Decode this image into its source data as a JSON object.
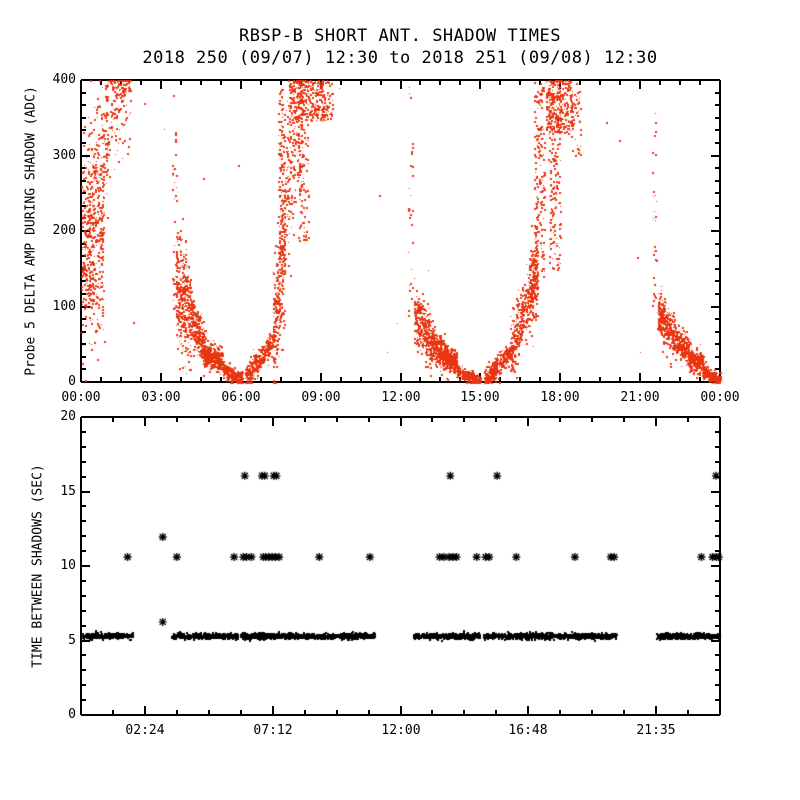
{
  "title": "RBSP-B SHORT ANT. SHADOW TIMES",
  "subtitle": "2018 250 (09/07) 12:30 to 2018 251 (09/08) 12:30",
  "colors": {
    "background": "#ffffff",
    "axis": "#000000",
    "red_series": "#ea3511",
    "black_series": "#000000"
  },
  "chart_data": [
    {
      "type": "scatter",
      "panel": "top",
      "series_name": "probe5-delta-amp",
      "ylabel": "Probe 5 DELTA AMP DURING SHADOW (ADC)",
      "xlabel": "",
      "xlim": [
        0,
        24
      ],
      "ylim": [
        0,
        400
      ],
      "x_tick_hours": [
        0,
        3,
        6,
        9,
        12,
        15,
        18,
        21,
        24
      ],
      "x_tick_labels": [
        "00:00",
        "03:00",
        "06:00",
        "09:00",
        "12:00",
        "15:00",
        "18:00",
        "21:00",
        "00:00"
      ],
      "x_minor_step": 0.75,
      "y_tick_values": [
        0,
        100,
        200,
        300,
        400
      ],
      "y_tick_labels": [
        "0",
        "100",
        "200",
        "300",
        "400"
      ],
      "y_minor_step": 16.667,
      "marker": "dot",
      "color": "#ea3511",
      "grid": false,
      "series_description": "Red dot scatter of probe 5 delta amplitude (ADC) during short antenna shadows. U-shaped shadow events with minima near 06:00, 15:00 and 24:00; saturated clusters at 400 ADC near 00:00-02:00, 08:00-09:15 and 17:30-18:30; sparse vertical entry streaks near 03:30, 12:20 and 21:30.",
      "bands": [
        [
          0.0,
          0.85,
          185,
          185,
          70,
          380
        ],
        [
          0.25,
          1.0,
          250,
          345,
          45,
          150
        ],
        [
          0.9,
          1.85,
          330,
          405,
          40,
          150
        ],
        [
          3.55,
          4.1,
          130,
          90,
          38,
          340
        ],
        [
          4.1,
          4.65,
          90,
          42,
          15,
          260
        ],
        [
          4.6,
          5.3,
          36,
          30,
          8,
          300
        ],
        [
          5.3,
          6.05,
          18,
          2,
          5,
          280
        ],
        [
          6.15,
          7.2,
          6,
          55,
          8,
          300
        ],
        [
          7.2,
          7.65,
          60,
          185,
          45,
          280
        ],
        [
          7.6,
          8.3,
          240,
          370,
          55,
          220
        ],
        [
          12.5,
          13.2,
          95,
          50,
          18,
          340
        ],
        [
          13.2,
          13.75,
          50,
          32,
          10,
          260
        ],
        [
          13.6,
          14.1,
          32,
          28,
          7,
          260
        ],
        [
          14.1,
          15.0,
          15,
          1,
          4,
          260
        ],
        [
          15.12,
          16.1,
          2,
          40,
          7,
          300
        ],
        [
          16.1,
          16.8,
          40,
          110,
          20,
          260
        ],
        [
          16.8,
          17.15,
          110,
          150,
          30,
          220
        ],
        [
          21.65,
          22.3,
          92,
          58,
          14,
          300
        ],
        [
          22.3,
          22.9,
          58,
          35,
          10,
          240
        ],
        [
          22.85,
          23.35,
          30,
          26,
          7,
          220
        ],
        [
          23.35,
          24.0,
          14,
          4,
          4,
          220
        ]
      ],
      "blocks": [
        [
          0.0,
          0.5,
          100,
          160,
          60
        ],
        [
          0.95,
          1.9,
          385,
          403,
          40
        ],
        [
          3.42,
          3.58,
          95,
          305,
          34
        ],
        [
          3.45,
          3.55,
          310,
          395,
          5
        ],
        [
          7.4,
          7.62,
          150,
          390,
          110
        ],
        [
          8.15,
          8.55,
          185,
          403,
          110
        ],
        [
          7.8,
          9.25,
          345,
          403,
          300
        ],
        [
          9.25,
          9.45,
          350,
          400,
          20
        ],
        [
          12.28,
          12.45,
          85,
          400,
          30
        ],
        [
          17.0,
          17.4,
          140,
          400,
          180
        ],
        [
          17.55,
          18.0,
          150,
          403,
          200
        ],
        [
          17.45,
          18.45,
          330,
          403,
          260
        ],
        [
          18.4,
          18.75,
          300,
          400,
          40
        ],
        [
          21.45,
          21.62,
          95,
          315,
          26
        ],
        [
          21.48,
          21.58,
          320,
          390,
          4
        ]
      ],
      "outlier_points": [
        [
          1.95,
          80
        ],
        [
          2.35,
          370
        ],
        [
          3.1,
          335
        ],
        [
          4.6,
          270
        ],
        [
          5.9,
          287
        ],
        [
          9.7,
          390
        ],
        [
          11.2,
          248
        ],
        [
          11.5,
          40
        ],
        [
          11.85,
          78
        ],
        [
          13.05,
          148
        ],
        [
          19.7,
          345
        ],
        [
          20.2,
          320
        ],
        [
          20.9,
          166
        ],
        [
          21.0,
          40
        ]
      ]
    },
    {
      "type": "scatter",
      "panel": "bottom",
      "series_name": "time-between-shadows",
      "ylabel": "TIME BETWEEN SHADOWS (SEC)",
      "xlabel": "",
      "xlim": [
        0,
        24
      ],
      "ylim": [
        0,
        20
      ],
      "x_tick_hours": [
        2.4,
        7.2,
        12,
        16.8,
        21.6
      ],
      "x_tick_labels": [
        "02:24",
        "07:12",
        "12:00",
        "16:48",
        "21:35"
      ],
      "x_minor_step": 1.2,
      "y_tick_values": [
        0,
        5,
        10,
        15,
        20
      ],
      "y_tick_labels": [
        "0",
        "5",
        "10",
        "15",
        "20"
      ],
      "y_minor_step": 1,
      "marker": "asterisk",
      "color": "#000000",
      "grid": false,
      "series_description": "Black asterisks: time between shadows in seconds. Dense solid band near 5.4 s with gaps at 1.9-3.4, 11.0-12.45 and 20.1-21.6; discrete points near 10.6 s, 16.05 s, one at 11.95 s and one at 6.25 s.",
      "band_y": 5.35,
      "band_segments": [
        [
          0.02,
          1.92
        ],
        [
          3.38,
          5.88
        ],
        [
          5.98,
          11.0
        ],
        [
          12.45,
          14.95
        ],
        [
          15.08,
          20.1
        ],
        [
          21.6,
          23.98
        ]
      ],
      "band_density_per_hour": 210,
      "band_jitter": 0.09,
      "sub_dots": [
        [
          0.05,
          0.45,
          5.05,
          7
        ],
        [
          6.0,
          6.3,
          5.1,
          4
        ],
        [
          14.2,
          14.6,
          5.1,
          4
        ],
        [
          21.65,
          22.7,
          5.1,
          12
        ]
      ],
      "asterisks": [
        [
          1.75,
          10.6
        ],
        [
          3.07,
          11.95
        ],
        [
          3.07,
          6.25
        ],
        [
          3.6,
          10.6
        ],
        [
          5.75,
          10.6
        ],
        [
          6.1,
          10.6
        ],
        [
          6.22,
          10.6
        ],
        [
          6.4,
          10.6
        ],
        [
          6.15,
          16.05
        ],
        [
          6.8,
          16.05
        ],
        [
          6.9,
          16.05
        ],
        [
          7.24,
          16.05
        ],
        [
          7.34,
          16.05
        ],
        [
          6.85,
          10.6
        ],
        [
          6.95,
          10.6
        ],
        [
          7.05,
          10.6
        ],
        [
          7.18,
          10.6
        ],
        [
          7.3,
          10.6
        ],
        [
          7.44,
          10.6
        ],
        [
          8.95,
          10.6
        ],
        [
          10.85,
          10.6
        ],
        [
          13.47,
          10.6
        ],
        [
          13.63,
          10.6
        ],
        [
          13.82,
          10.6
        ],
        [
          13.97,
          10.6
        ],
        [
          14.1,
          10.6
        ],
        [
          13.87,
          16.05
        ],
        [
          14.86,
          10.6
        ],
        [
          15.2,
          10.6
        ],
        [
          15.33,
          10.6
        ],
        [
          15.63,
          16.05
        ],
        [
          16.35,
          10.6
        ],
        [
          18.55,
          10.6
        ],
        [
          19.9,
          10.6
        ],
        [
          20.02,
          10.6
        ],
        [
          23.3,
          10.6
        ],
        [
          23.72,
          10.6
        ],
        [
          23.87,
          10.6
        ],
        [
          23.95,
          10.6
        ],
        [
          23.85,
          16.05
        ]
      ]
    }
  ]
}
